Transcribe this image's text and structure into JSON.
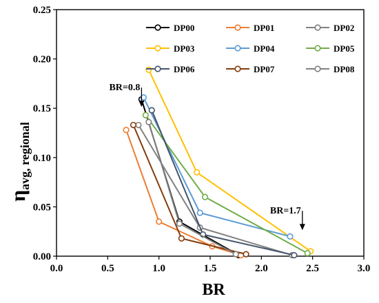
{
  "chart_data": {
    "type": "line",
    "title": "",
    "xlabel": "BR",
    "ylabel": {
      "main": "η",
      "sub": "avg, regional"
    },
    "xlim": [
      0.0,
      3.0
    ],
    "ylim": [
      0.0,
      0.25
    ],
    "xticks": [
      "0.0",
      "0.5",
      "1.0",
      "1.5",
      "2.0",
      "2.5",
      "3.0"
    ],
    "yticks": [
      "0.00",
      "0.05",
      "0.10",
      "0.15",
      "0.20",
      "0.25"
    ],
    "grid": false,
    "legend_placement": "top-right",
    "series": [
      {
        "name": "DP00",
        "color": "#000000",
        "x": [
          0.83,
          1.2,
          1.78
        ],
        "y": [
          0.159,
          0.035,
          0.001
        ]
      },
      {
        "name": "DP01",
        "color": "#ED7D31",
        "x": [
          0.68,
          1.0,
          1.52,
          1.8
        ],
        "y": [
          0.128,
          0.035,
          0.01,
          0.001
        ]
      },
      {
        "name": "DP02",
        "color": "#808080",
        "x": [
          0.8,
          1.4,
          2.3
        ],
        "y": [
          0.133,
          0.029,
          0.001
        ]
      },
      {
        "name": "DP03",
        "color": "#FFC000",
        "x": [
          0.9,
          1.37,
          2.48
        ],
        "y": [
          0.189,
          0.085,
          0.005
        ]
      },
      {
        "name": "DP04",
        "color": "#5B9BD5",
        "x": [
          0.85,
          1.4,
          2.28
        ],
        "y": [
          0.161,
          0.044,
          0.02
        ]
      },
      {
        "name": "DP05",
        "color": "#70AD47",
        "x": [
          0.87,
          1.45,
          2.45
        ],
        "y": [
          0.143,
          0.06,
          0.003
        ]
      },
      {
        "name": "DP06",
        "color": "#44546A",
        "x": [
          0.93,
          1.43,
          2.32
        ],
        "y": [
          0.148,
          0.022,
          0.001
        ]
      },
      {
        "name": "DP07",
        "color": "#843C0C",
        "x": [
          0.75,
          1.22,
          1.85
        ],
        "y": [
          0.133,
          0.018,
          0.002
        ]
      },
      {
        "name": "DP08",
        "color": "#808080",
        "x": [
          0.9,
          1.2,
          1.75
        ],
        "y": [
          0.136,
          0.033,
          0.002
        ]
      }
    ],
    "annotations": [
      {
        "text": "BR=0.8",
        "x": 0.83,
        "y": 0.15
      },
      {
        "text": "BR=1.7",
        "x": 2.4,
        "y": 0.025
      }
    ]
  }
}
